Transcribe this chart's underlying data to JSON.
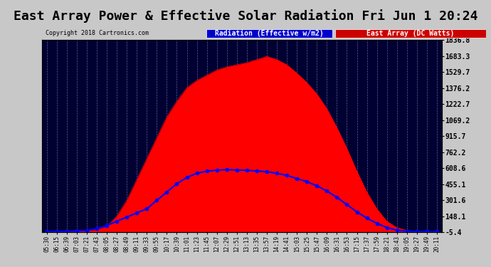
{
  "title": "East Array Power & Effective Solar Radiation Fri Jun 1 20:24",
  "copyright": "Copyright 2018 Cartronics.com",
  "legend_radiation": "Radiation (Effective w/m2)",
  "legend_east": "East Array (DC Watts)",
  "legend_radiation_bg": "#0000cc",
  "legend_east_bg": "#cc0000",
  "bg_color": "#1a1a2e",
  "plot_bg": "#000033",
  "grid_color": "#555577",
  "title_color": "#000000",
  "title_bg": "#cccccc",
  "y_min": -5.4,
  "y_max": 1836.8,
  "y_ticks": [
    -5.4,
    148.1,
    301.6,
    455.1,
    608.6,
    762.2,
    915.7,
    1069.2,
    1222.7,
    1376.2,
    1529.7,
    1683.3,
    1836.8
  ],
  "x_labels": [
    "05:30",
    "06:15",
    "06:39",
    "07:03",
    "07:21",
    "07:43",
    "08:05",
    "08:27",
    "08:49",
    "09:11",
    "09:33",
    "09:55",
    "10:17",
    "10:39",
    "11:01",
    "11:23",
    "11:45",
    "12:07",
    "12:29",
    "12:51",
    "13:13",
    "13:35",
    "13:57",
    "14:19",
    "14:41",
    "15:03",
    "15:25",
    "15:47",
    "16:09",
    "16:31",
    "16:53",
    "17:15",
    "17:37",
    "17:59",
    "18:21",
    "18:43",
    "19:05",
    "19:27",
    "19:49",
    "20:11"
  ],
  "radiation_color": "#0000ff",
  "east_fill_color": "#ff0000",
  "east_edge_color": "#ff0000",
  "radiation_line_color": "#0000ff",
  "radiation_values": [
    0,
    2,
    5,
    8,
    12,
    30,
    60,
    100,
    140,
    180,
    220,
    300,
    380,
    460,
    520,
    560,
    580,
    590,
    595,
    592,
    588,
    582,
    575,
    560,
    540,
    510,
    480,
    440,
    390,
    330,
    260,
    190,
    130,
    80,
    40,
    15,
    5,
    2,
    0,
    0
  ],
  "east_values": [
    0,
    0,
    2,
    5,
    10,
    20,
    50,
    150,
    300,
    500,
    700,
    900,
    1100,
    1250,
    1380,
    1450,
    1500,
    1550,
    1580,
    1600,
    1620,
    1650,
    1680,
    1650,
    1600,
    1520,
    1430,
    1320,
    1180,
    1000,
    800,
    580,
    380,
    220,
    100,
    40,
    12,
    3,
    0,
    0
  ],
  "radiation_scale": 3.05
}
